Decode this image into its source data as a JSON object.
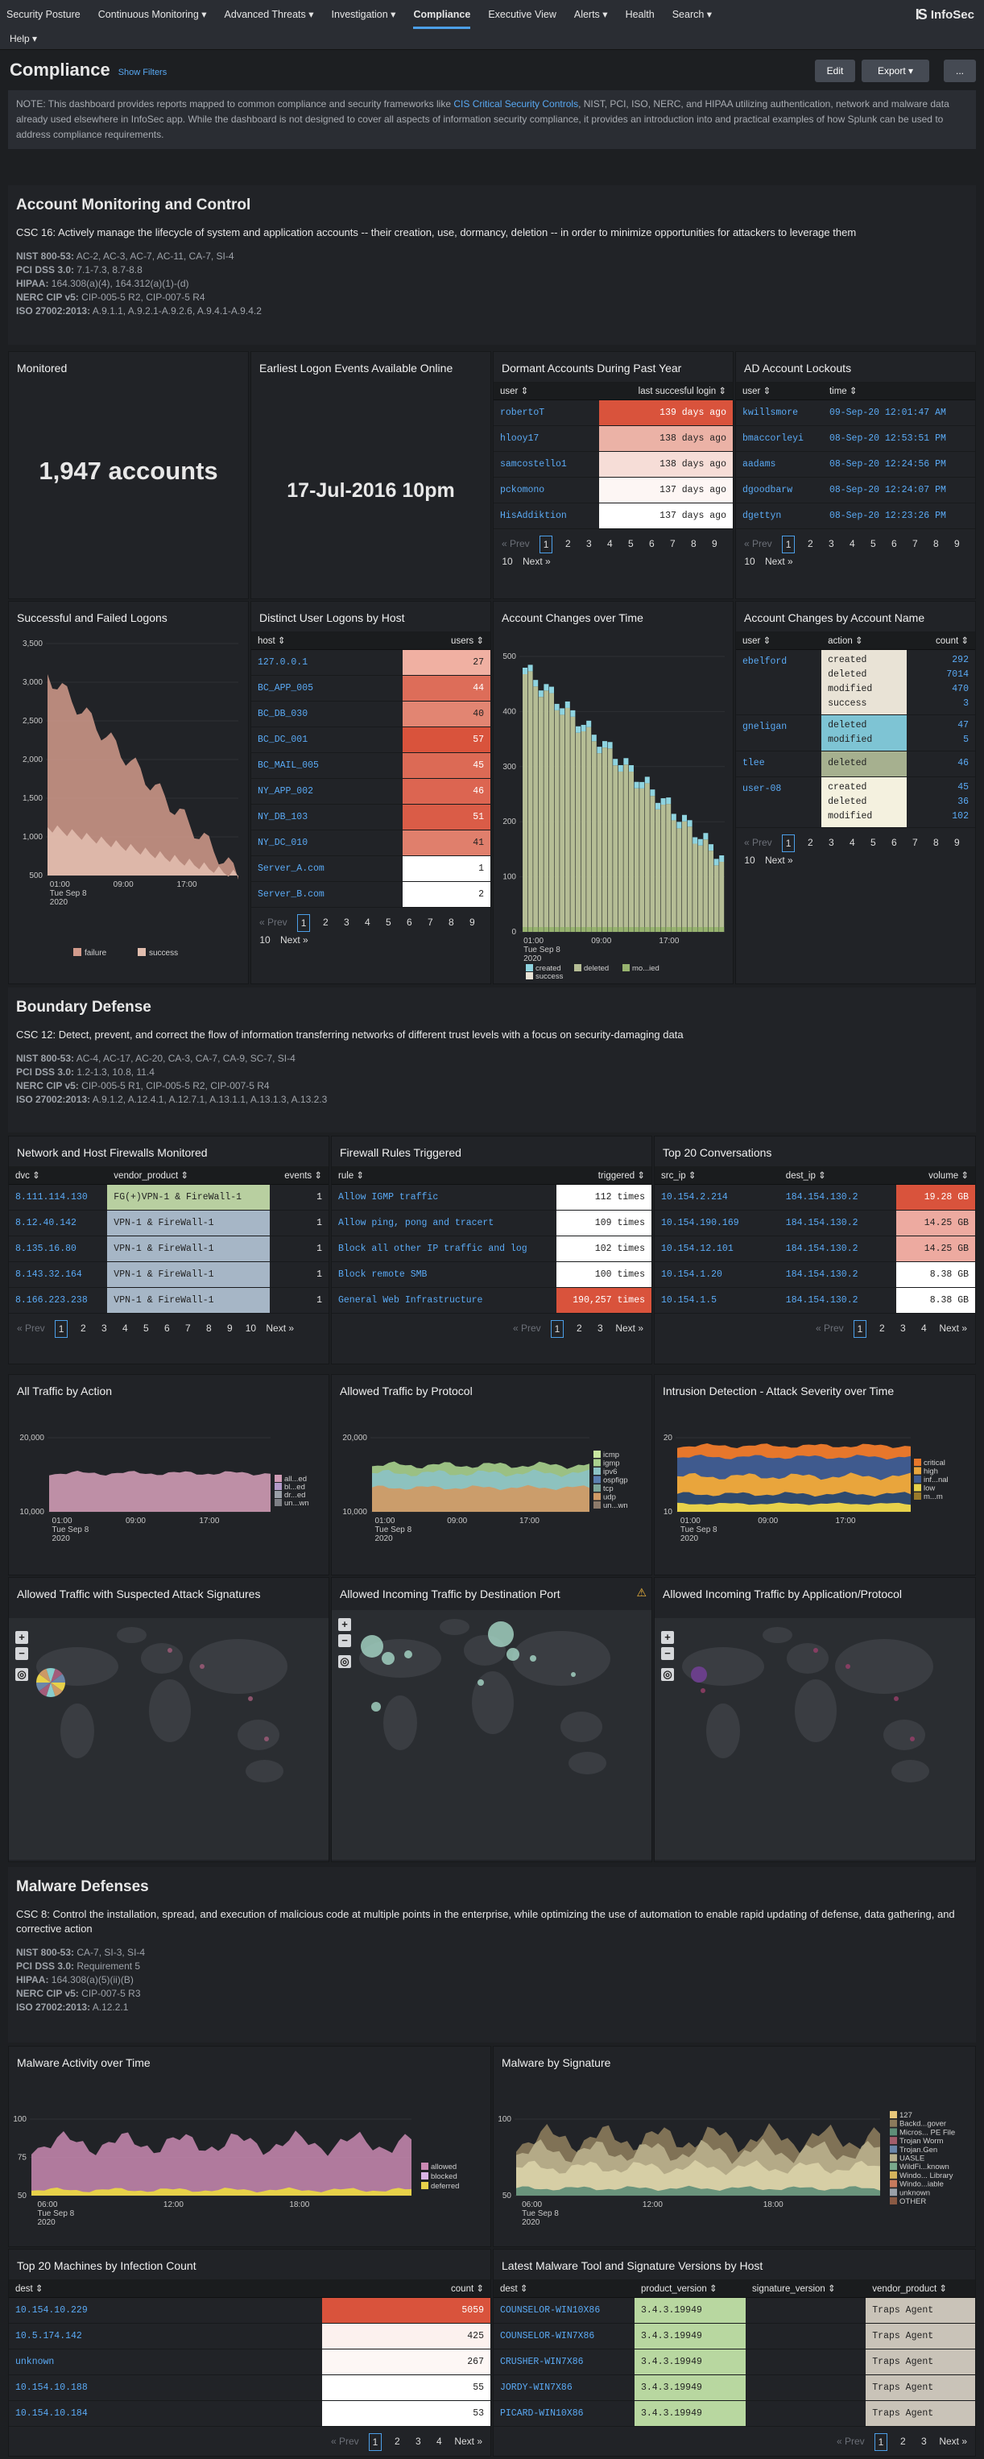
{
  "nav": {
    "items": [
      {
        "label": "Security Posture"
      },
      {
        "label": "Continuous Monitoring ▾"
      },
      {
        "label": "Advanced Threats ▾"
      },
      {
        "label": "Investigation ▾"
      },
      {
        "label": "Compliance"
      },
      {
        "label": "Executive View"
      },
      {
        "label": "Alerts ▾"
      },
      {
        "label": "Health"
      },
      {
        "label": "Search ▾"
      }
    ],
    "help": "Help ▾",
    "brand": "InfoSec",
    "brand_mark": "IS"
  },
  "page": {
    "title": "Compliance",
    "show_filters": "Show Filters",
    "edit": "Edit",
    "export": "Export ▾",
    "more": "...",
    "note_a": "NOTE: This dashboard provides reports mapped to common compliance and security frameworks like ",
    "note_link": "CIS Critical Security Controls",
    "note_b": ", NIST, PCI, ISO, NERC, and HIPAA utilizing authentication, network and malware data already used elsewhere in InfoSec app. While the dashboard is not designed to cover all aspects of information security compliance, it provides an introduction into and practical examples of how Splunk can be used to address compliance requirements."
  },
  "s1": {
    "title": "Account Monitoring and Control",
    "desc": "CSC 16: Actively manage the lifecycle of system and application accounts -- their creation, use, dormancy, deletion -- in order to minimize opportunities for attackers to leverage them",
    "refs": [
      [
        "NIST 800-53:",
        "AC-2, AC-3, AC-7, AC-11, CA-7, SI-4"
      ],
      [
        "PCI DSS 3.0:",
        "7.1-7.3, 8.7-8.8"
      ],
      [
        "HIPAA:",
        "164.308(a)(4), 164.312(a)(1)-(d)"
      ],
      [
        "NERC CIP v5:",
        "CIP-005-5 R2, CIP-007-5 R4"
      ],
      [
        "ISO 27002:2013:",
        "A.9.1.1, A.9.2.1-A.9.2.6, A.9.4.1-A.9.4.2"
      ]
    ]
  },
  "s2": {
    "title": "Boundary Defense",
    "desc": "CSC 12: Detect, prevent, and correct the flow of information transferring networks of different trust levels with a focus on security-damaging data",
    "refs": [
      [
        "NIST 800-53:",
        "AC-4, AC-17, AC-20, CA-3, CA-7, CA-9, SC-7, SI-4"
      ],
      [
        "PCI DSS 3.0:",
        "1.2-1.3, 10.8, 11.4"
      ],
      [
        "NERC CIP v5:",
        "CIP-005-5 R1, CIP-005-5 R2, CIP-007-5 R4"
      ],
      [
        "ISO 27002:2013:",
        "A.9.1.2, A.12.4.1, A.12.7.1, A.13.1.1, A.13.1.3, A.13.2.3"
      ]
    ]
  },
  "s3": {
    "title": "Malware Defenses",
    "desc": "CSC 8: Control the installation, spread, and execution of malicious code at multiple points in the enterprise, while optimizing the use of automation to enable rapid updating of defense, data gathering, and corrective action",
    "refs": [
      [
        "NIST 800-53:",
        "CA-7, SI-3, SI-4"
      ],
      [
        "PCI DSS 3.0:",
        "Requirement 5"
      ],
      [
        "HIPAA:",
        "164.308(a)(5)(ii)(B)"
      ],
      [
        "NERC CIP v5:",
        "CIP-007-5 R3"
      ],
      [
        "ISO 27002:2013:",
        "A.12.2.1"
      ]
    ]
  },
  "monitored": {
    "title": "Monitored",
    "value": "1,947 accounts"
  },
  "earliest": {
    "title": "Earliest Logon Events Available Online",
    "value": "17-Jul-2016 10pm"
  },
  "dormant": {
    "title": "Dormant Accounts During Past Year",
    "cols": [
      "user ⇕",
      "last succesful login ⇕"
    ],
    "rows": [
      [
        "robertoT",
        "139 days ago",
        "#d9533c"
      ],
      [
        "hlooy17",
        "138 days ago",
        "#ebb2a6"
      ],
      [
        "samcostello1",
        "138 days ago",
        "#f6ddd7"
      ],
      [
        "pckomono",
        "137 days ago",
        "#fdf6f4"
      ],
      [
        "HisAddiktion",
        "137 days ago",
        "#ffffff"
      ]
    ],
    "pager": [
      "« Prev",
      "1",
      "2",
      "3",
      "4",
      "5",
      "6",
      "7",
      "8",
      "9",
      "10",
      "Next »"
    ]
  },
  "lockouts": {
    "title": "AD Account Lockouts",
    "cols": [
      "user ⇕",
      "time ⇕"
    ],
    "rows": [
      [
        "kwillsmore",
        "09-Sep-20 12:01:47 AM"
      ],
      [
        "bmaccorleyi",
        "08-Sep-20 12:53:51 PM"
      ],
      [
        "aadams",
        "08-Sep-20 12:24:56 PM"
      ],
      [
        "dgoodbarw",
        "08-Sep-20 12:24:07 PM"
      ],
      [
        "dgettyn",
        "08-Sep-20 12:23:26 PM"
      ]
    ],
    "pager": [
      "« Prev",
      "1",
      "2",
      "3",
      "4",
      "5",
      "6",
      "7",
      "8",
      "9",
      "10",
      "Next »"
    ]
  },
  "logons": {
    "title": "Successful and Failed Logons",
    "yticks": [
      "3,500",
      "3,000",
      "2,500",
      "2,000",
      "1,500",
      "1,000",
      "500"
    ],
    "xticks": [
      "01:00",
      "09:00",
      "17:00"
    ],
    "xdate": "Tue Sep 8",
    "xyear": "2020",
    "legend": [
      "failure",
      "success"
    ]
  },
  "byhost": {
    "title": "Distinct User Logons by Host",
    "cols": [
      "host ⇕",
      "users ⇕"
    ],
    "rows": [
      [
        "127.0.0.1",
        "27",
        "#f0b0a2"
      ],
      [
        "BC_APP_005",
        "44",
        "#dd6d59"
      ],
      [
        "BC_DB_030",
        "40",
        "#e28572"
      ],
      [
        "BC_DC_001",
        "57",
        "#d9533c"
      ],
      [
        "BC_MAIL_005",
        "45",
        "#dc6a55"
      ],
      [
        "NY_APP_002",
        "46",
        "#dc6551"
      ],
      [
        "NY_DB_103",
        "51",
        "#da5c47"
      ],
      [
        "NY_DC_010",
        "41",
        "#e07f6c"
      ],
      [
        "Server_A.com",
        "1",
        "#ffffff"
      ],
      [
        "Server_B.com",
        "2",
        "#ffffff"
      ]
    ],
    "pager": [
      "« Prev",
      "1",
      "2",
      "3",
      "4",
      "5",
      "6",
      "7",
      "8",
      "9",
      "10",
      "Next »"
    ]
  },
  "changes": {
    "title": "Account Changes over Time",
    "yticks": [
      "500",
      "400",
      "300",
      "200",
      "100",
      "0"
    ],
    "xticks": [
      "01:00",
      "09:00",
      "17:00"
    ],
    "xdate": "Tue Sep 8",
    "xyear": "2020",
    "legend": [
      "created",
      "success",
      "deleted",
      "mo...ied"
    ]
  },
  "byacct": {
    "title": "Account Changes by Account Name",
    "cols": [
      "user ⇕",
      "action ⇕",
      "count ⇕"
    ],
    "groups": [
      {
        "user": "ebelford",
        "color": "#e9e3d6",
        "actions": [
          "created",
          "deleted",
          "modified",
          "success"
        ],
        "counts": [
          "292",
          "7014",
          "470",
          "3"
        ]
      },
      {
        "user": "gneligan",
        "color": "#7ec4d4",
        "actions": [
          "deleted",
          "modified"
        ],
        "counts": [
          "47",
          "5"
        ]
      },
      {
        "user": "tlee",
        "color": "#a6b08f",
        "actions": [
          "deleted"
        ],
        "counts": [
          "46"
        ]
      },
      {
        "user": "user-08",
        "color": "#f4f1df",
        "actions": [
          "created",
          "deleted",
          "modified"
        ],
        "counts": [
          "45",
          "36",
          "102"
        ]
      }
    ],
    "pager": [
      "« Prev",
      "1",
      "2",
      "3",
      "4",
      "5",
      "6",
      "7",
      "8",
      "9",
      "10",
      "Next »"
    ]
  },
  "firewalls": {
    "title": "Network and Host Firewalls Monitored",
    "cols": [
      "dvc ⇕",
      "vendor_product ⇕",
      "events ⇕"
    ],
    "rows": [
      [
        "8.111.114.130",
        "FG(+)VPN-1 & FireWall-1",
        "1",
        "#b8cfa0"
      ],
      [
        "8.12.40.142",
        "VPN-1 & FireWall-1",
        "1",
        "#a6b6c6"
      ],
      [
        "8.135.16.80",
        "VPN-1 & FireWall-1",
        "1",
        "#a6b6c6"
      ],
      [
        "8.143.32.164",
        "VPN-1 & FireWall-1",
        "1",
        "#a6b6c6"
      ],
      [
        "8.166.223.238",
        "VPN-1 & FireWall-1",
        "1",
        "#a6b6c6"
      ]
    ],
    "pager": [
      "« Prev",
      "1",
      "2",
      "3",
      "4",
      "5",
      "6",
      "7",
      "8",
      "9",
      "10",
      "Next »"
    ]
  },
  "rules": {
    "title": "Firewall Rules Triggered",
    "cols": [
      "rule ⇕",
      "triggered ⇕"
    ],
    "rows": [
      [
        "Allow IGMP traffic",
        "112 times",
        "#ffffff"
      ],
      [
        "Allow ping, pong and tracert",
        "109 times",
        "#ffffff"
      ],
      [
        "Block all other IP traffic and log",
        "102 times",
        "#ffffff"
      ],
      [
        "Block remote SMB",
        "100 times",
        "#ffffff"
      ],
      [
        "General Web Infrastructure",
        "190,257 times",
        "#d9533c"
      ]
    ],
    "pager": [
      "« Prev",
      "1",
      "2",
      "3",
      "Next »"
    ]
  },
  "convos": {
    "title": "Top 20 Conversations",
    "cols": [
      "src_ip ⇕",
      "dest_ip ⇕",
      "volume ⇕"
    ],
    "rows": [
      [
        "10.154.2.214",
        "184.154.130.2",
        "19.28 GB",
        "#d9533c"
      ],
      [
        "10.154.190.169",
        "184.154.130.2",
        "14.25 GB",
        "#edaaa0"
      ],
      [
        "10.154.12.101",
        "184.154.130.2",
        "14.25 GB",
        "#edaaa0"
      ],
      [
        "10.154.1.20",
        "184.154.130.2",
        "8.38 GB",
        "#ffffff"
      ],
      [
        "10.154.1.5",
        "184.154.130.2",
        "8.38 GB",
        "#ffffff"
      ]
    ],
    "pager": [
      "« Prev",
      "1",
      "2",
      "3",
      "4",
      "Next »"
    ]
  },
  "bytraffic": {
    "title": "All Traffic by Action",
    "yticks": [
      "20,000",
      "10,000"
    ],
    "xticks": [
      "01:00",
      "09:00",
      "17:00"
    ],
    "xdate": "Tue Sep 8",
    "xyear": "2020",
    "legend": [
      "all...ed",
      "bl...ed",
      "dr...ed",
      "un...wn"
    ]
  },
  "byproto": {
    "title": "Allowed Traffic by Protocol",
    "yticks": [
      "20,000",
      "10,000"
    ],
    "xticks": [
      "01:00",
      "09:00",
      "17:00"
    ],
    "xdate": "Tue Sep 8",
    "xyear": "2020",
    "legend": [
      "icmp",
      "igmp",
      "ipv6",
      "ospfigp",
      "tcp",
      "udp",
      "un...wn"
    ]
  },
  "ids": {
    "title": "Intrusion Detection - Attack Severity over Time",
    "yticks": [
      "20",
      "10"
    ],
    "xticks": [
      "01:00",
      "09:00",
      "17:00"
    ],
    "xdate": "Tue Sep 8",
    "xyear": "2020",
    "legend": [
      "critical",
      "high",
      "inf...nal",
      "low",
      "m...m"
    ]
  },
  "map1": {
    "title": "Allowed Traffic with Suspected Attack Signatures"
  },
  "map2": {
    "title": "Allowed Incoming Traffic by Destination Port"
  },
  "map3": {
    "title": "Allowed Incoming Traffic by Application/Protocol"
  },
  "malact": {
    "title": "Malware Activity over Time",
    "yticks": [
      "100",
      "75",
      "50"
    ],
    "xticks": [
      "06:00",
      "12:00",
      "18:00"
    ],
    "xdate": "Tue Sep 8",
    "xyear": "2020",
    "legend": [
      "allowed",
      "blocked",
      "deferred"
    ]
  },
  "malsig": {
    "title": "Malware by Signature",
    "yticks": [
      "100",
      "50"
    ],
    "xticks": [
      "06:00",
      "12:00",
      "18:00"
    ],
    "xdate": "Tue Sep 8",
    "xyear": "2020",
    "legend": [
      "127",
      "Backd...gover",
      "Micros... PE File",
      "Trojan Worm",
      "Trojan.Gen",
      "UASLE",
      "WildFi...known",
      "Windo... Library",
      "Windo...iable",
      "unknown",
      "OTHER"
    ]
  },
  "infect": {
    "title": "Top 20 Machines by Infection Count",
    "cols": [
      "dest ⇕",
      "count ⇕"
    ],
    "rows": [
      [
        "10.154.10.229",
        "5059",
        "#d9533c"
      ],
      [
        "10.5.174.142",
        "425",
        "#fcf1ee"
      ],
      [
        "unknown",
        "267",
        "#fdf7f5"
      ],
      [
        "10.154.10.188",
        "55",
        "#ffffff"
      ],
      [
        "10.154.10.184",
        "53",
        "#ffffff"
      ]
    ],
    "pager": [
      "« Prev",
      "1",
      "2",
      "3",
      "4",
      "Next »"
    ]
  },
  "versions": {
    "title": "Latest Malware Tool and Signature Versions by Host",
    "cols": [
      "dest ⇕",
      "product_version ⇕",
      "signature_version ⇕",
      "vendor_product ⇕"
    ],
    "rows": [
      [
        "COUNSELOR-WIN10X86",
        "3.4.3.19949",
        "",
        "Traps Agent"
      ],
      [
        "COUNSELOR-WIN7X86",
        "3.4.3.19949",
        "",
        "Traps Agent"
      ],
      [
        "CRUSHER-WIN7X86",
        "3.4.3.19949",
        "",
        "Traps Agent"
      ],
      [
        "JORDY-WIN7X86",
        "3.4.3.19949",
        "",
        "Traps Agent"
      ],
      [
        "PICARD-WIN10X86",
        "3.4.3.19949",
        "",
        "Traps Agent"
      ]
    ],
    "pager": [
      "« Prev",
      "1",
      "2",
      "3",
      "Next »"
    ]
  },
  "colors": {
    "accent": "#4c9fe8",
    "heat_high": "#d9533c",
    "link": "#5aaaf5",
    "failure": "#d29b8c",
    "success": "#e1bdae"
  }
}
